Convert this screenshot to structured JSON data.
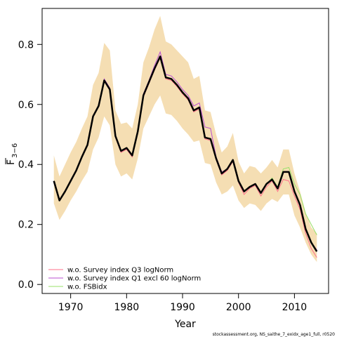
{
  "chart_data": {
    "type": "line",
    "title": "",
    "xlabel": "Year",
    "ylabel_main": "F",
    "ylabel_sub": "3−6",
    "xlim": [
      1967,
      2014
    ],
    "ylim": [
      -0.03,
      0.92
    ],
    "xticks": [
      1970,
      1980,
      1990,
      2000,
      2010
    ],
    "yticks": [
      0.0,
      0.2,
      0.4,
      0.6,
      0.8
    ],
    "ytick_labels": [
      "0.0",
      "0.2",
      "0.4",
      "0.6",
      "0.8"
    ],
    "grid": false,
    "legend_position": "bottom-left",
    "x": [
      1967,
      1968,
      1969,
      1970,
      1971,
      1972,
      1973,
      1974,
      1975,
      1976,
      1977,
      1978,
      1979,
      1980,
      1981,
      1982,
      1983,
      1984,
      1985,
      1986,
      1987,
      1988,
      1989,
      1990,
      1991,
      1992,
      1993,
      1994,
      1995,
      1996,
      1997,
      1998,
      1999,
      2000,
      2001,
      2002,
      2003,
      2004,
      2005,
      2006,
      2007,
      2008,
      2009,
      2010,
      2011,
      2012,
      2013,
      2014
    ],
    "band": {
      "color": "#f5deb3",
      "lower": [
        0.27,
        0.215,
        0.245,
        0.28,
        0.31,
        0.345,
        0.375,
        0.45,
        0.49,
        0.56,
        0.53,
        0.4,
        0.36,
        0.37,
        0.35,
        0.42,
        0.52,
        0.56,
        0.6,
        0.63,
        0.57,
        0.565,
        0.545,
        0.52,
        0.5,
        0.475,
        0.48,
        0.405,
        0.4,
        0.34,
        0.3,
        0.31,
        0.33,
        0.28,
        0.255,
        0.27,
        0.265,
        0.245,
        0.27,
        0.285,
        0.275,
        0.3,
        0.3,
        0.23,
        0.19,
        0.14,
        0.1,
        0.075
      ],
      "upper": [
        0.43,
        0.36,
        0.4,
        0.44,
        0.475,
        0.52,
        0.56,
        0.665,
        0.705,
        0.805,
        0.78,
        0.58,
        0.535,
        0.54,
        0.52,
        0.6,
        0.74,
        0.79,
        0.85,
        0.895,
        0.81,
        0.8,
        0.78,
        0.76,
        0.74,
        0.685,
        0.695,
        0.58,
        0.575,
        0.5,
        0.44,
        0.46,
        0.505,
        0.41,
        0.37,
        0.395,
        0.39,
        0.37,
        0.39,
        0.415,
        0.39,
        0.45,
        0.45,
        0.37,
        0.31,
        0.24,
        0.19,
        0.17
      ]
    },
    "baseline": {
      "color": "#000000",
      "values": [
        0.345,
        0.28,
        0.31,
        0.345,
        0.38,
        0.425,
        0.465,
        0.56,
        0.595,
        0.68,
        0.65,
        0.495,
        0.445,
        0.455,
        0.43,
        0.51,
        0.63,
        0.675,
        0.72,
        0.76,
        0.69,
        0.685,
        0.665,
        0.64,
        0.62,
        0.58,
        0.59,
        0.49,
        0.485,
        0.42,
        0.37,
        0.385,
        0.415,
        0.345,
        0.31,
        0.325,
        0.335,
        0.305,
        0.335,
        0.35,
        0.32,
        0.375,
        0.375,
        0.31,
        0.265,
        0.185,
        0.14,
        0.11
      ]
    },
    "series": [
      {
        "name": "w.o. Survey index Q3 logNorm",
        "color": "#ff6f8a",
        "values": [
          0.34,
          0.28,
          0.31,
          0.345,
          0.38,
          0.425,
          0.465,
          0.56,
          0.595,
          0.68,
          0.65,
          0.49,
          0.44,
          0.45,
          0.425,
          0.51,
          0.625,
          0.67,
          0.715,
          0.755,
          0.685,
          0.68,
          0.66,
          0.635,
          0.615,
          0.575,
          0.585,
          0.485,
          0.48,
          0.415,
          0.365,
          0.38,
          0.41,
          0.34,
          0.3,
          0.32,
          0.33,
          0.295,
          0.325,
          0.345,
          0.31,
          0.35,
          0.345,
          0.295,
          0.25,
          0.17,
          0.12,
          0.09
        ]
      },
      {
        "name": "w.o. Survey index Q1 excl 60 logNorm",
        "color": "#b94fd0",
        "values": [
          0.345,
          0.28,
          0.31,
          0.345,
          0.38,
          0.425,
          0.465,
          0.56,
          0.595,
          0.685,
          0.655,
          0.495,
          0.445,
          0.455,
          0.43,
          0.51,
          0.635,
          0.68,
          0.73,
          0.775,
          0.7,
          0.695,
          0.675,
          0.65,
          0.63,
          0.595,
          0.605,
          0.525,
          0.52,
          0.425,
          0.375,
          0.385,
          0.415,
          0.345,
          0.31,
          0.325,
          0.335,
          0.305,
          0.335,
          0.35,
          0.32,
          0.375,
          0.375,
          0.31,
          0.265,
          0.185,
          0.14,
          0.115
        ]
      },
      {
        "name": "w.o. FSBidx",
        "color": "#99e06a",
        "values": [
          0.345,
          0.28,
          0.31,
          0.345,
          0.38,
          0.425,
          0.465,
          0.56,
          0.595,
          0.68,
          0.65,
          0.495,
          0.445,
          0.455,
          0.43,
          0.51,
          0.63,
          0.675,
          0.72,
          0.76,
          0.69,
          0.685,
          0.665,
          0.64,
          0.62,
          0.58,
          0.59,
          0.49,
          0.485,
          0.42,
          0.37,
          0.385,
          0.415,
          0.345,
          0.31,
          0.325,
          0.335,
          0.305,
          0.335,
          0.355,
          0.325,
          0.385,
          0.39,
          0.335,
          0.3,
          0.235,
          0.2,
          0.165
        ]
      }
    ]
  },
  "footer_note": "stockassessment.org, NS_saithe_7_exidx_age1_full, r0520"
}
